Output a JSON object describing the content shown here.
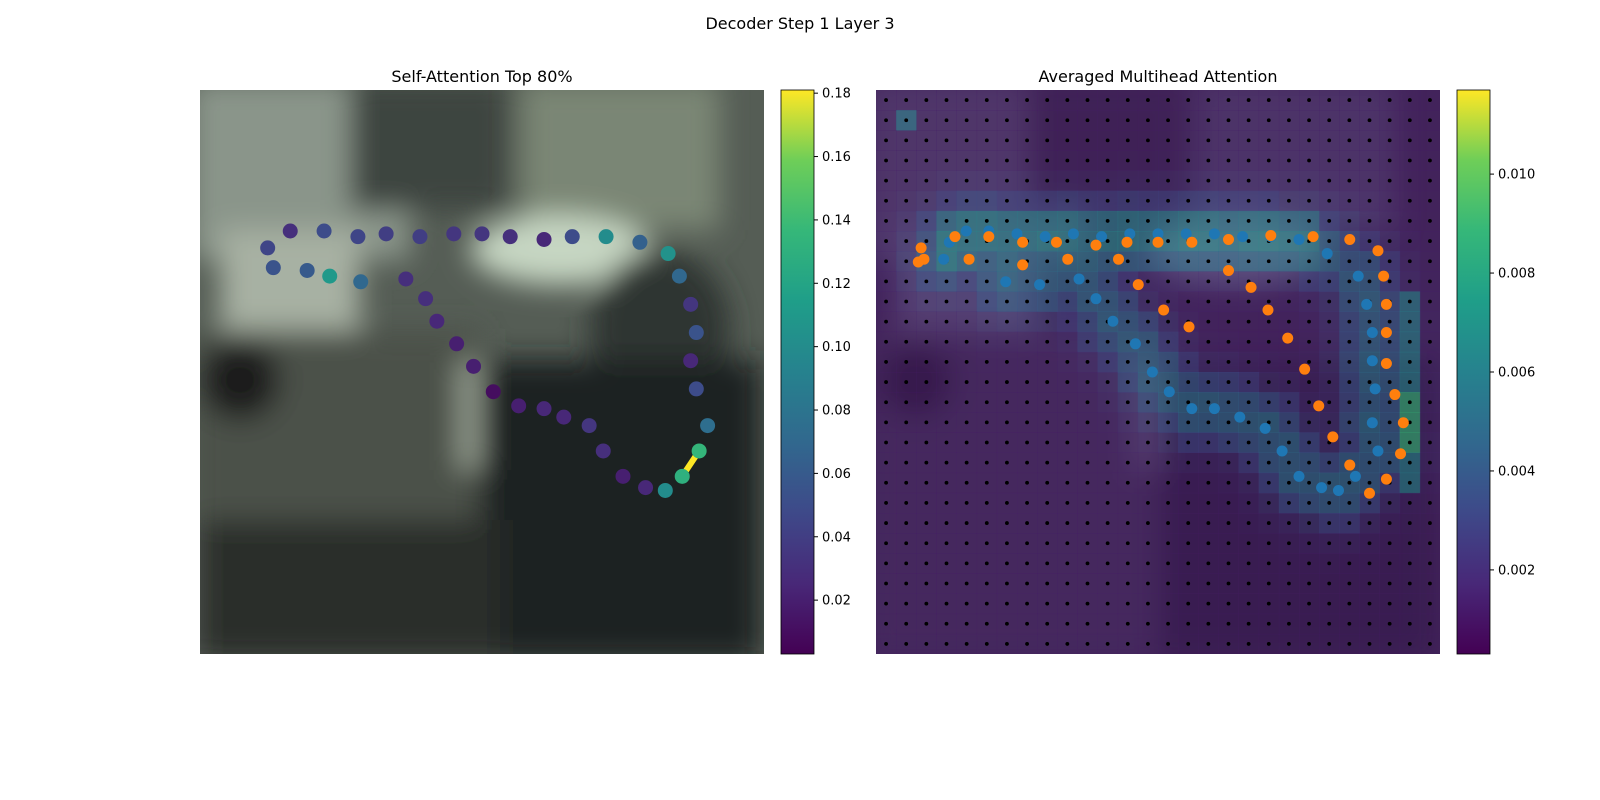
{
  "figure": {
    "title": "Decoder Step 1 Layer 3"
  },
  "chart_data": [
    {
      "type": "scatter",
      "title": "Self-Attention Top 80%",
      "xlabel": "",
      "ylabel": "",
      "axes_visible": false,
      "background": "blurred photo of an office scene",
      "color_scale": {
        "name": "viridis",
        "range": [
          0.003,
          0.181
        ],
        "ticks": [
          0.02,
          0.04,
          0.06,
          0.08,
          0.1,
          0.12,
          0.14,
          0.16,
          0.18
        ],
        "tick_labels": [
          "0.02",
          "0.04",
          "0.06",
          "0.08",
          "0.10",
          "0.12",
          "0.14",
          "0.16",
          "0.18"
        ]
      },
      "series": [
        {
          "role": "attention-weighted sequence points (x, y, weight)",
          "points": [
            [
              0.12,
              0.28,
              0.045
            ],
            [
              0.16,
              0.25,
              0.03
            ],
            [
              0.22,
              0.25,
              0.05
            ],
            [
              0.28,
              0.26,
              0.045
            ],
            [
              0.33,
              0.255,
              0.04
            ],
            [
              0.39,
              0.26,
              0.04
            ],
            [
              0.45,
              0.255,
              0.035
            ],
            [
              0.5,
              0.255,
              0.035
            ],
            [
              0.55,
              0.26,
              0.03
            ],
            [
              0.61,
              0.265,
              0.025
            ],
            [
              0.66,
              0.26,
              0.05
            ],
            [
              0.72,
              0.26,
              0.1
            ],
            [
              0.78,
              0.27,
              0.065
            ],
            [
              0.83,
              0.29,
              0.105
            ],
            [
              0.85,
              0.33,
              0.07
            ],
            [
              0.87,
              0.38,
              0.035
            ],
            [
              0.88,
              0.43,
              0.055
            ],
            [
              0.87,
              0.48,
              0.025
            ],
            [
              0.88,
              0.53,
              0.05
            ],
            [
              0.9,
              0.595,
              0.075
            ],
            [
              0.885,
              0.64,
              0.135
            ],
            [
              0.855,
              0.685,
              0.13
            ],
            [
              0.825,
              0.71,
              0.1
            ],
            [
              0.79,
              0.705,
              0.025
            ],
            [
              0.75,
              0.685,
              0.02
            ],
            [
              0.715,
              0.64,
              0.03
            ],
            [
              0.69,
              0.595,
              0.035
            ],
            [
              0.645,
              0.58,
              0.025
            ],
            [
              0.61,
              0.565,
              0.025
            ],
            [
              0.565,
              0.56,
              0.02
            ],
            [
              0.52,
              0.535,
              0.01
            ],
            [
              0.485,
              0.49,
              0.02
            ],
            [
              0.455,
              0.45,
              0.02
            ],
            [
              0.42,
              0.41,
              0.025
            ],
            [
              0.4,
              0.37,
              0.03
            ],
            [
              0.365,
              0.335,
              0.03
            ],
            [
              0.285,
              0.34,
              0.07
            ],
            [
              0.23,
              0.33,
              0.11
            ],
            [
              0.19,
              0.32,
              0.06
            ],
            [
              0.13,
              0.315,
              0.055
            ]
          ],
          "highlight_segment": {
            "from_index": 20,
            "to_index": 21,
            "color": "#fde725"
          }
        }
      ]
    },
    {
      "type": "heatmap",
      "title": "Averaged Multihead Attention",
      "xlabel": "",
      "ylabel": "",
      "axes_visible": false,
      "grid": {
        "rows": 28,
        "cols": 28
      },
      "color_scale": {
        "name": "viridis",
        "range": [
          0.0003,
          0.0117
        ],
        "ticks": [
          0.002,
          0.004,
          0.006,
          0.008,
          0.01
        ],
        "tick_labels": [
          "0.002",
          "0.004",
          "0.006",
          "0.008",
          "0.010"
        ]
      },
      "series": [
        {
          "name": "",
          "color": "#1f77b4",
          "points": [
            [
              0.13,
              0.27
            ],
            [
              0.16,
              0.25
            ],
            [
              0.2,
              0.25
            ],
            [
              0.25,
              0.255
            ],
            [
              0.3,
              0.26
            ],
            [
              0.35,
              0.255
            ],
            [
              0.4,
              0.26
            ],
            [
              0.45,
              0.255
            ],
            [
              0.5,
              0.255
            ],
            [
              0.55,
              0.255
            ],
            [
              0.6,
              0.255
            ],
            [
              0.65,
              0.26
            ],
            [
              0.7,
              0.26
            ],
            [
              0.75,
              0.265
            ],
            [
              0.8,
              0.29
            ],
            [
              0.855,
              0.33
            ],
            [
              0.87,
              0.38
            ],
            [
              0.88,
              0.43
            ],
            [
              0.88,
              0.48
            ],
            [
              0.885,
              0.53
            ],
            [
              0.88,
              0.59
            ],
            [
              0.89,
              0.64
            ],
            [
              0.85,
              0.685
            ],
            [
              0.82,
              0.71
            ],
            [
              0.79,
              0.705
            ],
            [
              0.75,
              0.685
            ],
            [
              0.72,
              0.64
            ],
            [
              0.69,
              0.6
            ],
            [
              0.645,
              0.58
            ],
            [
              0.6,
              0.565
            ],
            [
              0.56,
              0.565
            ],
            [
              0.52,
              0.535
            ],
            [
              0.49,
              0.5
            ],
            [
              0.46,
              0.45
            ],
            [
              0.42,
              0.41
            ],
            [
              0.39,
              0.37
            ],
            [
              0.36,
              0.335
            ],
            [
              0.29,
              0.345
            ],
            [
              0.23,
              0.34
            ],
            [
              0.12,
              0.3
            ]
          ]
        },
        {
          "name": "",
          "color": "#ff7f0e",
          "points": [
            [
              0.08,
              0.28
            ],
            [
              0.085,
              0.3
            ],
            [
              0.14,
              0.26
            ],
            [
              0.2,
              0.26
            ],
            [
              0.26,
              0.27
            ],
            [
              0.32,
              0.27
            ],
            [
              0.39,
              0.275
            ],
            [
              0.445,
              0.27
            ],
            [
              0.5,
              0.27
            ],
            [
              0.56,
              0.27
            ],
            [
              0.625,
              0.265
            ],
            [
              0.7,
              0.258
            ],
            [
              0.775,
              0.26
            ],
            [
              0.84,
              0.265
            ],
            [
              0.89,
              0.285
            ],
            [
              0.9,
              0.33
            ],
            [
              0.905,
              0.38
            ],
            [
              0.905,
              0.43
            ],
            [
              0.905,
              0.485
            ],
            [
              0.92,
              0.54
            ],
            [
              0.935,
              0.59
            ],
            [
              0.93,
              0.645
            ],
            [
              0.905,
              0.69
            ],
            [
              0.875,
              0.715
            ],
            [
              0.84,
              0.665
            ],
            [
              0.81,
              0.615
            ],
            [
              0.785,
              0.56
            ],
            [
              0.76,
              0.495
            ],
            [
              0.73,
              0.44
            ],
            [
              0.695,
              0.39
            ],
            [
              0.665,
              0.35
            ],
            [
              0.625,
              0.32
            ],
            [
              0.555,
              0.42
            ],
            [
              0.51,
              0.39
            ],
            [
              0.465,
              0.345
            ],
            [
              0.43,
              0.3
            ],
            [
              0.34,
              0.3
            ],
            [
              0.26,
              0.31
            ],
            [
              0.165,
              0.3
            ],
            [
              0.075,
              0.305
            ]
          ]
        }
      ]
    }
  ]
}
